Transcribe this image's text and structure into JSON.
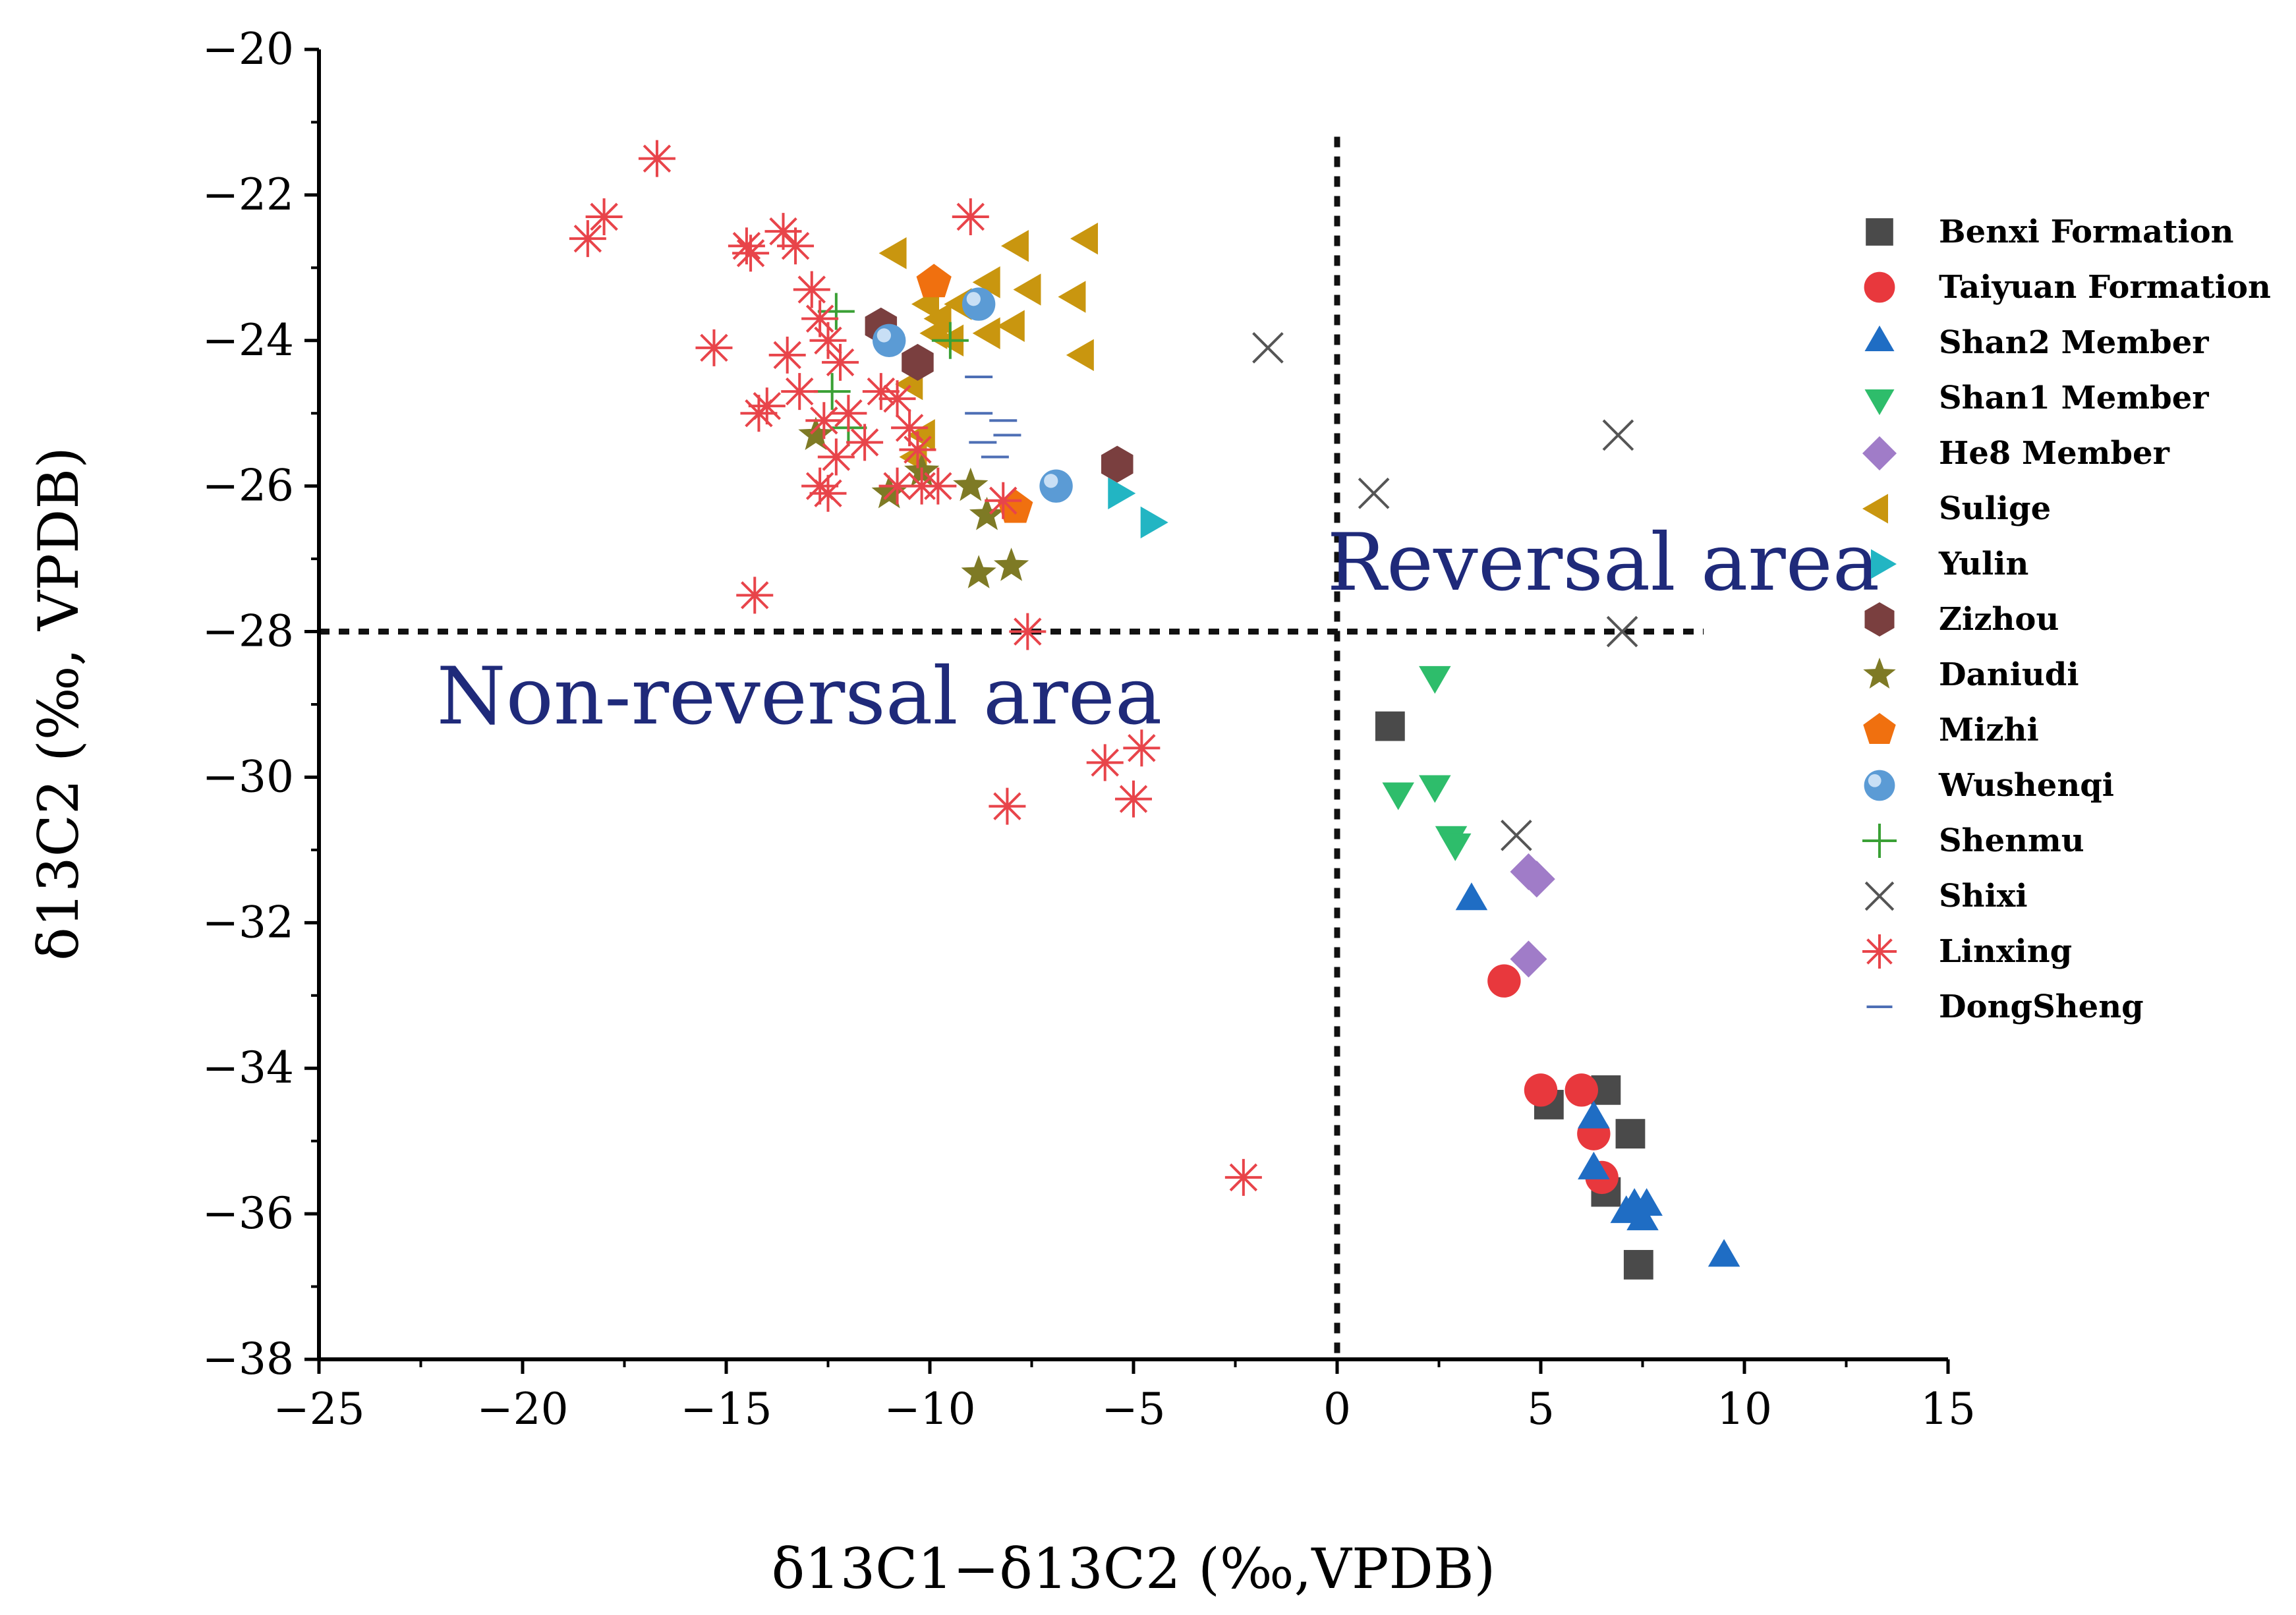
{
  "chart_data": {
    "type": "scatter",
    "xlabel": "δ13C1−δ13C2 (‰,VPDB)",
    "ylabel": "δ13C2 (‰, VPDB)",
    "xlim": [
      -25,
      15
    ],
    "ylim": [
      -38,
      -20
    ],
    "xticks": [
      -25,
      -20,
      -15,
      -10,
      -5,
      0,
      5,
      10,
      15
    ],
    "yticks": [
      -20,
      -22,
      -24,
      -26,
      -28,
      -30,
      -32,
      -34,
      -36,
      -38
    ],
    "xtick_labels": [
      "−25",
      "−20",
      "−15",
      "−10",
      "−5",
      "0",
      "5",
      "10",
      "15"
    ],
    "ytick_labels": [
      "−20",
      "−22",
      "−24",
      "−26",
      "−28",
      "−30",
      "−32",
      "−34",
      "−36",
      "−38"
    ],
    "reference_lines": [
      {
        "orientation": "vertical",
        "x": 0,
        "y_range": [
          -38,
          -21.2
        ]
      },
      {
        "orientation": "horizontal",
        "y": -28,
        "x_range": [
          -25,
          9
        ]
      }
    ],
    "annotations": [
      {
        "text": "Reversal area",
        "x": 6.5,
        "y": -27.1
      },
      {
        "text": "Non-reversal area",
        "x": -13.5,
        "y": -28.9
      }
    ],
    "legend_position": "right",
    "series": [
      {
        "name": "Benxi  Formation",
        "marker": "square",
        "color": "#4a4a4a",
        "points": [
          [
            1.3,
            -29.3
          ],
          [
            5.2,
            -34.5
          ],
          [
            6.6,
            -34.3
          ],
          [
            7.2,
            -34.9
          ],
          [
            6.6,
            -35.7
          ],
          [
            7.4,
            -36.7
          ]
        ]
      },
      {
        "name": "Taiyuan  Formation",
        "marker": "circle",
        "color": "#e8383d",
        "points": [
          [
            4.1,
            -32.8
          ],
          [
            5.0,
            -34.3
          ],
          [
            6.0,
            -34.3
          ],
          [
            6.3,
            -34.9
          ],
          [
            6.5,
            -35.5
          ]
        ]
      },
      {
        "name": "Shan2 Member",
        "marker": "triangle-up",
        "color": "#1f6dc4",
        "points": [
          [
            3.3,
            -31.7
          ],
          [
            6.3,
            -34.7
          ],
          [
            6.3,
            -35.4
          ],
          [
            7.1,
            -36.0
          ],
          [
            7.3,
            -35.9
          ],
          [
            7.5,
            -36.1
          ],
          [
            7.6,
            -35.9
          ],
          [
            9.5,
            -36.6
          ]
        ]
      },
      {
        "name": "Shan1  Member",
        "marker": "triangle-down",
        "color": "#2ebd6b",
        "points": [
          [
            2.4,
            -28.6
          ],
          [
            1.5,
            -30.2
          ],
          [
            2.4,
            -30.1
          ],
          [
            2.8,
            -30.8
          ],
          [
            2.9,
            -30.9
          ]
        ]
      },
      {
        "name": "He8 Member",
        "marker": "diamond",
        "color": "#a07cc8",
        "points": [
          [
            4.7,
            -31.3
          ],
          [
            4.9,
            -31.4
          ],
          [
            4.7,
            -32.5
          ]
        ]
      },
      {
        "name": "Sulige",
        "marker": "triangle-left",
        "color": "#c9960f",
        "points": [
          [
            -10.8,
            -22.8
          ],
          [
            -7.8,
            -22.7
          ],
          [
            -6.1,
            -22.6
          ],
          [
            -8.5,
            -23.2
          ],
          [
            -7.5,
            -23.3
          ],
          [
            -6.4,
            -23.4
          ],
          [
            -9.2,
            -23.5
          ],
          [
            -9.8,
            -23.9
          ],
          [
            -9.4,
            -24.0
          ],
          [
            -8.5,
            -23.9
          ],
          [
            -7.9,
            -23.8
          ],
          [
            -6.2,
            -24.2
          ],
          [
            -10.4,
            -24.6
          ],
          [
            -10.1,
            -25.3
          ],
          [
            -10.3,
            -25.6
          ],
          [
            -9.7,
            -23.7
          ],
          [
            -10.0,
            -23.5
          ]
        ]
      },
      {
        "name": "Yulin",
        "marker": "triangle-right",
        "color": "#22b5c3",
        "points": [
          [
            -5.4,
            -26.1
          ],
          [
            -4.6,
            -26.5
          ]
        ]
      },
      {
        "name": "Zizhou",
        "marker": "hexagon",
        "color": "#7a3f3f",
        "points": [
          [
            -11.2,
            -23.8
          ],
          [
            -10.3,
            -24.3
          ],
          [
            -5.4,
            -25.7
          ]
        ]
      },
      {
        "name": "Daniudi",
        "marker": "star",
        "color": "#7e7a25",
        "points": [
          [
            -12.8,
            -25.3
          ],
          [
            -10.2,
            -25.8
          ],
          [
            -11.0,
            -26.1
          ],
          [
            -9.0,
            -26.0
          ],
          [
            -8.6,
            -26.4
          ],
          [
            -8.8,
            -27.2
          ],
          [
            -8.0,
            -27.1
          ]
        ]
      },
      {
        "name": "Mizhi",
        "marker": "pentagon",
        "color": "#f0700f",
        "points": [
          [
            -9.9,
            -23.2
          ],
          [
            -7.9,
            -26.3
          ]
        ]
      },
      {
        "name": "Wushenqi",
        "marker": "sphere",
        "color": "#5b9bd5",
        "points": [
          [
            -11.0,
            -24.0
          ],
          [
            -8.8,
            -23.5
          ],
          [
            -6.9,
            -26.0
          ]
        ]
      },
      {
        "name": "Shenmu",
        "marker": "plus",
        "color": "#3aa035",
        "points": [
          [
            -12.3,
            -23.6
          ],
          [
            -12.4,
            -24.7
          ],
          [
            -12.0,
            -25.2
          ],
          [
            -9.5,
            -24.0
          ]
        ]
      },
      {
        "name": "Shixi",
        "marker": "x",
        "color": "#555555",
        "points": [
          [
            -1.7,
            -24.1
          ],
          [
            6.9,
            -25.3
          ],
          [
            0.9,
            -26.1
          ],
          [
            7.0,
            -28.0
          ],
          [
            4.4,
            -30.8
          ]
        ]
      },
      {
        "name": "Linxing",
        "marker": "asterisk",
        "color": "#e8444a",
        "points": [
          [
            -16.7,
            -21.5
          ],
          [
            -18.0,
            -22.3
          ],
          [
            -18.4,
            -22.6
          ],
          [
            -13.6,
            -22.5
          ],
          [
            -14.5,
            -22.7
          ],
          [
            -14.4,
            -22.8
          ],
          [
            -13.3,
            -22.7
          ],
          [
            -9.0,
            -22.3
          ],
          [
            -12.9,
            -23.3
          ],
          [
            -12.7,
            -23.7
          ],
          [
            -15.3,
            -24.1
          ],
          [
            -13.5,
            -24.2
          ],
          [
            -12.2,
            -24.3
          ],
          [
            -12.5,
            -24.0
          ],
          [
            -11.2,
            -24.7
          ],
          [
            -10.8,
            -24.8
          ],
          [
            -13.2,
            -24.7
          ],
          [
            -14.0,
            -24.9
          ],
          [
            -14.2,
            -25.0
          ],
          [
            -12.6,
            -25.1
          ],
          [
            -12.0,
            -25.0
          ],
          [
            -11.6,
            -25.4
          ],
          [
            -10.5,
            -25.2
          ],
          [
            -12.3,
            -25.6
          ],
          [
            -10.3,
            -25.5
          ],
          [
            -12.7,
            -26.0
          ],
          [
            -12.5,
            -26.1
          ],
          [
            -10.8,
            -26.0
          ],
          [
            -10.2,
            -26.0
          ],
          [
            -9.8,
            -26.0
          ],
          [
            -8.2,
            -26.2
          ],
          [
            -14.3,
            -27.5
          ],
          [
            -7.6,
            -28.0
          ],
          [
            -4.8,
            -29.6
          ],
          [
            -5.7,
            -29.8
          ],
          [
            -5.0,
            -30.3
          ],
          [
            -8.1,
            -30.4
          ],
          [
            -2.3,
            -35.5
          ]
        ]
      },
      {
        "name": "DongSheng",
        "marker": "dash",
        "color": "#4e6fb5",
        "points": [
          [
            -8.8,
            -24.5
          ],
          [
            -8.8,
            -25.0
          ],
          [
            -8.2,
            -25.1
          ],
          [
            -8.1,
            -25.3
          ],
          [
            -8.7,
            -25.4
          ],
          [
            -8.4,
            -25.6
          ]
        ]
      }
    ]
  }
}
